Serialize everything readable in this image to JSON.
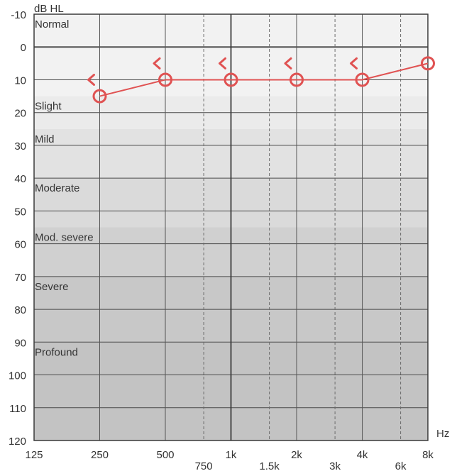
{
  "chart_data": {
    "type": "line",
    "title": "",
    "ylabel": "dB HL",
    "xlabel": "Hz",
    "ylim": [
      -10,
      120
    ],
    "y_inverted": true,
    "y_ticks": [
      -10,
      0,
      10,
      20,
      30,
      40,
      50,
      60,
      70,
      80,
      90,
      100,
      110,
      120
    ],
    "x_scale": "log2",
    "x_range_hz": [
      125,
      8000
    ],
    "x_major_ticks": [
      {
        "hz": 125,
        "label": "125"
      },
      {
        "hz": 250,
        "label": "250"
      },
      {
        "hz": 500,
        "label": "500"
      },
      {
        "hz": 1000,
        "label": "1k"
      },
      {
        "hz": 2000,
        "label": "2k"
      },
      {
        "hz": 4000,
        "label": "4k"
      },
      {
        "hz": 8000,
        "label": "8k"
      }
    ],
    "x_minor_ticks": [
      {
        "hz": 750,
        "label": "750"
      },
      {
        "hz": 1500,
        "label": "1.5k"
      },
      {
        "hz": 3000,
        "label": "3k"
      },
      {
        "hz": 6000,
        "label": "6k"
      }
    ],
    "bands": [
      {
        "label": "Normal",
        "from_db": -10,
        "to_db": 15,
        "color": "#f2f2f2"
      },
      {
        "label": "Slight",
        "from_db": 15,
        "to_db": 25,
        "color": "#ebebeb"
      },
      {
        "label": "Mild",
        "from_db": 25,
        "to_db": 40,
        "color": "#e2e2e2"
      },
      {
        "label": "Moderate",
        "from_db": 40,
        "to_db": 55,
        "color": "#dadada"
      },
      {
        "label": "Mod. severe",
        "from_db": 55,
        "to_db": 70,
        "color": "#d0d0d0"
      },
      {
        "label": "Severe",
        "from_db": 70,
        "to_db": 90,
        "color": "#c8c8c8"
      },
      {
        "label": "Profound",
        "from_db": 90,
        "to_db": 120,
        "color": "#c3c3c3"
      }
    ],
    "series": [
      {
        "name": "Right ear air conduction",
        "marker": "circle",
        "color": "#e05252",
        "points": [
          {
            "hz": 250,
            "db": 15
          },
          {
            "hz": 500,
            "db": 10
          },
          {
            "hz": 1000,
            "db": 10
          },
          {
            "hz": 2000,
            "db": 10
          },
          {
            "hz": 4000,
            "db": 10
          },
          {
            "hz": 8000,
            "db": 5
          }
        ]
      },
      {
        "name": "Right ear bone conduction",
        "marker": "bracket-left",
        "color": "#e05252",
        "points": [
          {
            "hz": 250,
            "db": 10
          },
          {
            "hz": 500,
            "db": 5
          },
          {
            "hz": 1000,
            "db": 5
          },
          {
            "hz": 2000,
            "db": 5
          },
          {
            "hz": 4000,
            "db": 5
          }
        ]
      }
    ]
  }
}
